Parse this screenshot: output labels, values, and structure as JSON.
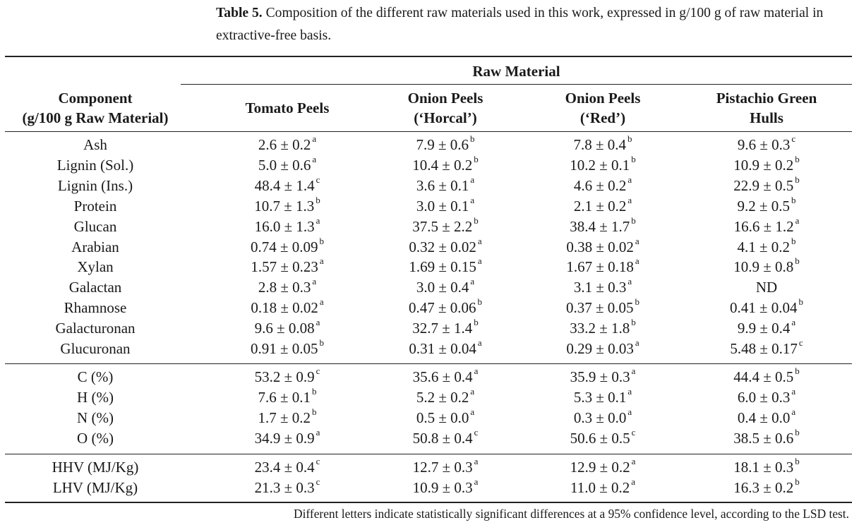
{
  "caption": {
    "label": "Table 5.",
    "text": "Composition of the different raw materials used in this work, expressed in g/100 g of raw material in extractive-free basis."
  },
  "table": {
    "spanning_header": "Raw Material",
    "columns": [
      {
        "line1": "Component",
        "line2": "(g/100 g Raw Material)"
      },
      {
        "line1": "Tomato Peels",
        "line2": ""
      },
      {
        "line1": "Onion Peels",
        "line2": "(‘Horcal’)"
      },
      {
        "line1": "Onion Peels",
        "line2": "(‘Red’)"
      },
      {
        "line1": "Pistachio Green",
        "line2": "Hulls"
      }
    ],
    "groups": [
      [
        {
          "label": "Ash",
          "cells": [
            {
              "v": "2.6 ± 0.2",
              "s": "a"
            },
            {
              "v": "7.9 ± 0.6",
              "s": "b"
            },
            {
              "v": "7.8 ± 0.4",
              "s": "b"
            },
            {
              "v": "9.6 ± 0.3",
              "s": "c"
            }
          ]
        },
        {
          "label": "Lignin (Sol.)",
          "cells": [
            {
              "v": "5.0 ± 0.6",
              "s": "a"
            },
            {
              "v": "10.4 ± 0.2",
              "s": "b"
            },
            {
              "v": "10.2 ± 0.1",
              "s": "b"
            },
            {
              "v": "10.9 ± 0.2",
              "s": "b"
            }
          ]
        },
        {
          "label": "Lignin (Ins.)",
          "cells": [
            {
              "v": "48.4 ± 1.4",
              "s": "c"
            },
            {
              "v": "3.6 ± 0.1",
              "s": "a"
            },
            {
              "v": "4.6 ± 0.2",
              "s": "a"
            },
            {
              "v": "22.9 ± 0.5",
              "s": "b"
            }
          ]
        },
        {
          "label": "Protein",
          "cells": [
            {
              "v": "10.7 ± 1.3",
              "s": "b"
            },
            {
              "v": "3.0 ± 0.1",
              "s": "a"
            },
            {
              "v": "2.1 ± 0.2",
              "s": "a"
            },
            {
              "v": "9.2 ± 0.5",
              "s": "b"
            }
          ]
        },
        {
          "label": "Glucan",
          "cells": [
            {
              "v": "16.0 ± 1.3",
              "s": "a"
            },
            {
              "v": "37.5 ± 2.2",
              "s": "b"
            },
            {
              "v": "38.4 ± 1.7",
              "s": "b"
            },
            {
              "v": "16.6 ± 1.2",
              "s": "a"
            }
          ]
        },
        {
          "label": "Arabian",
          "cells": [
            {
              "v": "0.74 ± 0.09",
              "s": "b"
            },
            {
              "v": "0.32 ± 0.02",
              "s": "a"
            },
            {
              "v": "0.38 ± 0.02",
              "s": "a"
            },
            {
              "v": "4.1 ± 0.2",
              "s": "b"
            }
          ]
        },
        {
          "label": "Xylan",
          "cells": [
            {
              "v": "1.57 ± 0.23",
              "s": "a"
            },
            {
              "v": "1.69 ± 0.15",
              "s": "a"
            },
            {
              "v": "1.67 ± 0.18",
              "s": "a"
            },
            {
              "v": "10.9 ± 0.8",
              "s": "b"
            }
          ]
        },
        {
          "label": "Galactan",
          "cells": [
            {
              "v": "2.8 ± 0.3",
              "s": "a"
            },
            {
              "v": "3.0 ± 0.4",
              "s": "a"
            },
            {
              "v": "3.1 ± 0.3",
              "s": "a"
            },
            {
              "v": "ND",
              "s": ""
            }
          ]
        },
        {
          "label": "Rhamnose",
          "cells": [
            {
              "v": "0.18 ± 0.02",
              "s": "a"
            },
            {
              "v": "0.47 ± 0.06",
              "s": "b"
            },
            {
              "v": "0.37 ± 0.05",
              "s": "b"
            },
            {
              "v": "0.41 ± 0.04",
              "s": "b"
            }
          ]
        },
        {
          "label": "Galacturonan",
          "cells": [
            {
              "v": "9.6 ± 0.08",
              "s": "a"
            },
            {
              "v": "32.7 ± 1.4",
              "s": "b"
            },
            {
              "v": "33.2 ± 1.8",
              "s": "b"
            },
            {
              "v": "9.9 ± 0.4",
              "s": "a"
            }
          ]
        },
        {
          "label": "Glucuronan",
          "cells": [
            {
              "v": "0.91 ± 0.05",
              "s": "b"
            },
            {
              "v": "0.31 ± 0.04",
              "s": "a"
            },
            {
              "v": "0.29 ± 0.03",
              "s": "a"
            },
            {
              "v": "5.48 ± 0.17",
              "s": "c"
            }
          ]
        }
      ],
      [
        {
          "label": "C (%)",
          "cells": [
            {
              "v": "53.2 ± 0.9",
              "s": "c"
            },
            {
              "v": "35.6 ± 0.4",
              "s": "a"
            },
            {
              "v": "35.9 ± 0.3",
              "s": "a"
            },
            {
              "v": "44.4 ± 0.5",
              "s": "b"
            }
          ]
        },
        {
          "label": "H (%)",
          "cells": [
            {
              "v": "7.6 ± 0.1",
              "s": "b"
            },
            {
              "v": "5.2 ± 0.2",
              "s": "a"
            },
            {
              "v": "5.3 ± 0.1",
              "s": "a"
            },
            {
              "v": "6.0 ± 0.3",
              "s": "a"
            }
          ]
        },
        {
          "label": "N (%)",
          "cells": [
            {
              "v": "1.7 ± 0.2",
              "s": "b"
            },
            {
              "v": "0.5 ± 0.0",
              "s": "a"
            },
            {
              "v": "0.3 ± 0.0",
              "s": "a"
            },
            {
              "v": "0.4 ± 0.0",
              "s": "a"
            }
          ]
        },
        {
          "label": "O (%)",
          "cells": [
            {
              "v": "34.9 ± 0.9",
              "s": "a"
            },
            {
              "v": "50.8 ± 0.4",
              "s": "c"
            },
            {
              "v": "50.6 ± 0.5",
              "s": "c"
            },
            {
              "v": "38.5 ± 0.6",
              "s": "b"
            }
          ]
        }
      ],
      [
        {
          "label": "HHV (MJ/Kg)",
          "cells": [
            {
              "v": "23.4 ± 0.4",
              "s": "c"
            },
            {
              "v": "12.7 ± 0.3",
              "s": "a"
            },
            {
              "v": "12.9 ± 0.2",
              "s": "a"
            },
            {
              "v": "18.1 ± 0.3",
              "s": "b"
            }
          ]
        },
        {
          "label": "LHV (MJ/Kg)",
          "cells": [
            {
              "v": "21.3 ± 0.3",
              "s": "c"
            },
            {
              "v": "10.9 ± 0.3",
              "s": "a"
            },
            {
              "v": "11.0 ± 0.2",
              "s": "a"
            },
            {
              "v": "16.3 ± 0.2",
              "s": "b"
            }
          ]
        }
      ]
    ]
  },
  "footnote": "Different letters indicate statistically significant differences at a 95% confidence level, according to the LSD test."
}
